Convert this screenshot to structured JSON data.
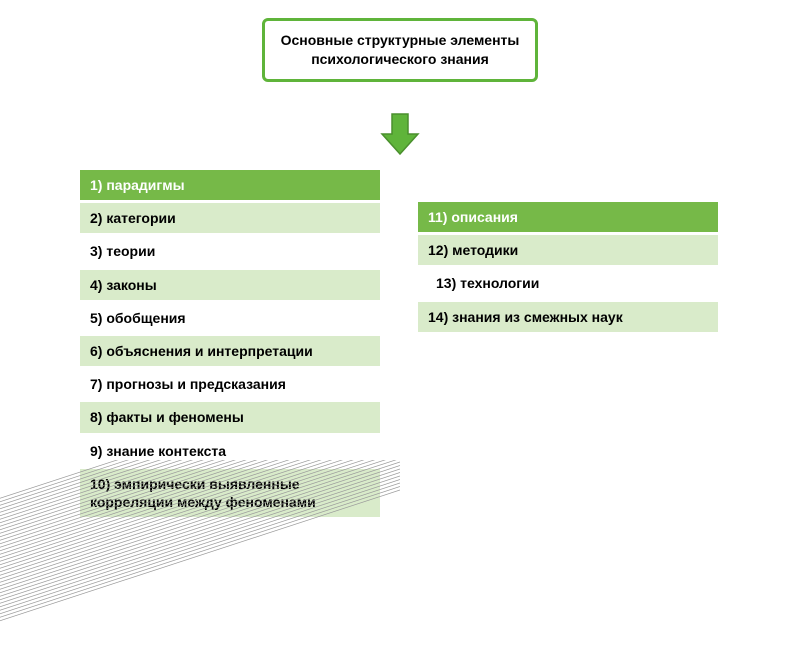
{
  "title": {
    "text": "Основные структурные элементы психологического знания",
    "border_color": "#5fb43a",
    "bg_color": "#ffffff",
    "text_color": "#000000",
    "font_size": 14
  },
  "arrow": {
    "fill": "#5fb43a",
    "stroke": "#4a8f2d"
  },
  "rows": {
    "colors": {
      "header": {
        "bg": "#76b948",
        "text": "#ffffff"
      },
      "light": {
        "bg": "#d9ebca",
        "text": "#000000"
      },
      "plain": {
        "bg": "#ffffff",
        "text": "#000000"
      }
    },
    "font_size": 14
  },
  "left_list": [
    {
      "label": "1) парадигмы",
      "style": "header"
    },
    {
      "label": "2) категории",
      "style": "light"
    },
    {
      "label": "3) теории",
      "style": "plain"
    },
    {
      "label": "4) законы",
      "style": "light"
    },
    {
      "label": "5) обобщения",
      "style": "plain"
    },
    {
      "label": "6) объяснения и интерпретации",
      "style": "light"
    },
    {
      "label": "7) прогнозы и предсказания",
      "style": "plain"
    },
    {
      "label": "8) факты и феномены",
      "style": "light"
    },
    {
      "label": "9) знание контекста",
      "style": "plain"
    },
    {
      "label": "10) эмпирически выявленные корреляции между феноменами",
      "style": "light"
    }
  ],
  "right_list": [
    {
      "label": "11) описания",
      "style": "header"
    },
    {
      "label": "12) методики",
      "style": "light"
    },
    {
      "label": "13) технологии",
      "style": "plain",
      "indent": true
    },
    {
      "label": "14) знания из смежных наук",
      "style": "light"
    }
  ],
  "decor_lines": {
    "stroke": "#9a9a9a",
    "stroke_width": 0.7,
    "count": 36
  }
}
